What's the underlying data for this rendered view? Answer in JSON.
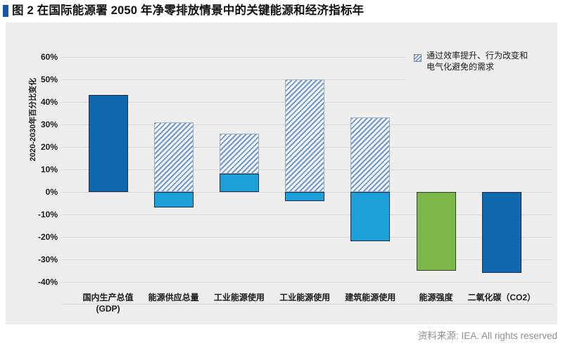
{
  "header": {
    "title": "图 2 在国际能源署 2050 年净零排放情景中的关键能源和经济指标年"
  },
  "footer": {
    "source": "资料来源: IEA. All rights reserved"
  },
  "chart_data": {
    "type": "bar",
    "title": "图 2 在国际能源署 2050 年净零排放情景中的关键能源和经济指标年",
    "xlabel": "",
    "ylabel": "2020-2030年百分比变化",
    "ylim": [
      -40,
      60
    ],
    "grid": true,
    "ytick_values": [
      60,
      50,
      40,
      30,
      20,
      10,
      0,
      -10,
      -20,
      -30,
      -40
    ],
    "ytick_labels": [
      "60%",
      "50%",
      "40%",
      "30%",
      "20%",
      "10%",
      "0%",
      "-10%",
      "-20%",
      "-30%",
      "-40%"
    ],
    "legend": {
      "position": "top-right",
      "items": [
        {
          "label": "通过效率提升、行为改变和\n电气化避免的需求",
          "style": "hatch"
        }
      ]
    },
    "categories": [
      "国内生产总值\n(GDP)",
      "能源供应总量",
      "工业能源使用",
      "工业能源使用",
      "建筑能源使用",
      "能源强度",
      "二氧化碳（CO2）"
    ],
    "bars": [
      {
        "category": "国内生产总值 (GDP)",
        "segments": [
          {
            "from": 0,
            "to": 43,
            "style": "solid_dark",
            "meaning": "net-change"
          }
        ]
      },
      {
        "category": "能源供应总量",
        "segments": [
          {
            "from": 0,
            "to": 31,
            "style": "hatch",
            "meaning": "avoided-demand"
          },
          {
            "from": 0,
            "to": -7,
            "style": "solid_light",
            "meaning": "net-change"
          }
        ]
      },
      {
        "category": "工业能源使用",
        "segments": [
          {
            "from": 0,
            "to": 8,
            "style": "solid_light",
            "meaning": "net-change"
          },
          {
            "from": 8,
            "to": 26,
            "style": "hatch",
            "meaning": "avoided-demand"
          }
        ]
      },
      {
        "category": "工业能源使用",
        "segments": [
          {
            "from": 0,
            "to": 50,
            "style": "hatch",
            "meaning": "avoided-demand"
          },
          {
            "from": 0,
            "to": -4,
            "style": "solid_light",
            "meaning": "net-change"
          }
        ]
      },
      {
        "category": "建筑能源使用",
        "segments": [
          {
            "from": 0,
            "to": 33,
            "style": "hatch",
            "meaning": "avoided-demand"
          },
          {
            "from": 0,
            "to": -22,
            "style": "solid_light",
            "meaning": "net-change"
          }
        ]
      },
      {
        "category": "能源强度",
        "segments": [
          {
            "from": 0,
            "to": -35,
            "style": "solid_green",
            "meaning": "net-change"
          }
        ]
      },
      {
        "category": "二氧化碳（CO2）",
        "segments": [
          {
            "from": 0,
            "to": -36,
            "style": "solid_dark",
            "meaning": "net-change"
          }
        ]
      }
    ],
    "colors": {
      "dark_blue": "#0e69b0",
      "light_blue": "#1ca0d9",
      "green": "#7cb84a",
      "hatch_stripe": "#7295ca",
      "hatch_background": "#f3f7fc",
      "panel_background": "#eeeeee",
      "title_marker": "#1a54a6",
      "gridline": "#d4d4d4",
      "source_text": "#8f8f8f"
    }
  }
}
